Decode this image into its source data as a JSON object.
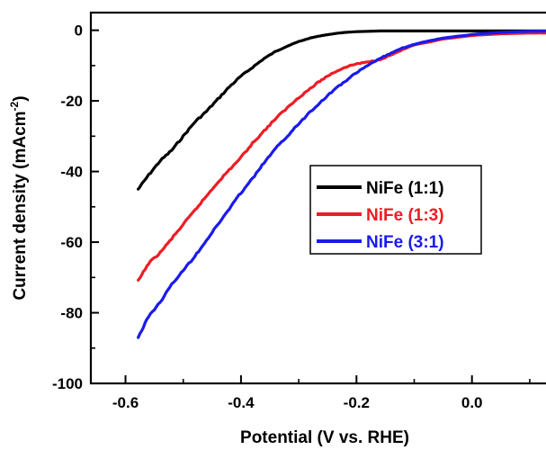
{
  "chart_data": {
    "type": "line",
    "xlabel": "Potential (V vs. RHE)",
    "ylabel_main": "Current density (mAcm",
    "ylabel_sup": "-2",
    "ylabel_close": ")",
    "xlim": [
      -0.66,
      0.15
    ],
    "ylim": [
      -100,
      5
    ],
    "xticks": [
      -0.6,
      -0.4,
      -0.2,
      0.0
    ],
    "xtick_labels": [
      "-0.6",
      "-0.4",
      "-0.2",
      "0.0"
    ],
    "yticks": [
      0,
      -20,
      -40,
      -60,
      -80,
      -100
    ],
    "ytick_labels": [
      "0",
      "-20",
      "-40",
      "-60",
      "-80",
      "-100"
    ],
    "grid": false,
    "legend_position": "center-right",
    "series": [
      {
        "name": "NiFe (1:1)",
        "color": "#000000",
        "x": [
          -0.578,
          -0.56,
          -0.54,
          -0.52,
          -0.5,
          -0.48,
          -0.46,
          -0.44,
          -0.42,
          -0.4,
          -0.38,
          -0.36,
          -0.34,
          -0.32,
          -0.3,
          -0.28,
          -0.26,
          -0.24,
          -0.22,
          -0.2,
          -0.18,
          -0.16,
          -0.14,
          -0.1,
          -0.05,
          0.0,
          0.05,
          0.1,
          0.15
        ],
        "y": [
          -45,
          -41,
          -37,
          -34,
          -30,
          -26,
          -23,
          -19.5,
          -16,
          -13,
          -10.5,
          -8,
          -6,
          -4.5,
          -3.2,
          -2.2,
          -1.5,
          -1.0,
          -0.6,
          -0.4,
          -0.3,
          -0.2,
          -0.2,
          -0.2,
          -0.2,
          -0.2,
          -0.2,
          -0.2,
          -0.2
        ]
      },
      {
        "name": "NiFe (1:3)",
        "color": "#ee1c25",
        "x": [
          -0.578,
          -0.56,
          -0.54,
          -0.52,
          -0.5,
          -0.48,
          -0.46,
          -0.44,
          -0.42,
          -0.4,
          -0.38,
          -0.36,
          -0.34,
          -0.32,
          -0.3,
          -0.28,
          -0.26,
          -0.24,
          -0.22,
          -0.2,
          -0.18,
          -0.16,
          -0.14,
          -0.12,
          -0.1,
          -0.05,
          0.0,
          0.05,
          0.1,
          0.15
        ],
        "y": [
          -71,
          -66,
          -63,
          -59,
          -55,
          -51,
          -47,
          -43,
          -39.5,
          -36,
          -32,
          -28.5,
          -25,
          -22,
          -19,
          -16.5,
          -14,
          -12,
          -10.5,
          -9.5,
          -9,
          -8.3,
          -7,
          -5.5,
          -4.2,
          -2.5,
          -1.5,
          -1.0,
          -0.8,
          -0.8
        ]
      },
      {
        "name": "NiFe (3:1)",
        "color": "#1a1aee",
        "x": [
          -0.578,
          -0.56,
          -0.54,
          -0.52,
          -0.5,
          -0.48,
          -0.46,
          -0.44,
          -0.42,
          -0.4,
          -0.38,
          -0.36,
          -0.34,
          -0.32,
          -0.3,
          -0.28,
          -0.26,
          -0.24,
          -0.22,
          -0.2,
          -0.18,
          -0.16,
          -0.14,
          -0.12,
          -0.1,
          -0.08,
          -0.05,
          0.0,
          0.05,
          0.1,
          0.15
        ],
        "y": [
          -87,
          -81,
          -77,
          -72,
          -68,
          -64,
          -59.5,
          -55,
          -50.5,
          -46,
          -42,
          -37.5,
          -33.5,
          -30,
          -26.5,
          -23,
          -20,
          -17,
          -14.5,
          -12,
          -10,
          -8,
          -6.5,
          -5,
          -4,
          -3.2,
          -2.2,
          -1.2,
          -0.6,
          -0.3,
          -0.2
        ]
      }
    ]
  }
}
